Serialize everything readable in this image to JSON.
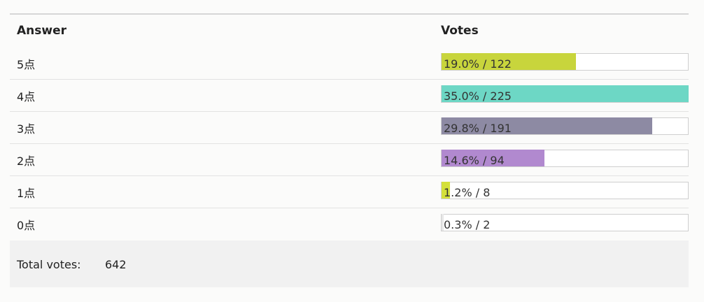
{
  "table": {
    "headers": [
      "Answer",
      "Votes"
    ],
    "rows": [
      {
        "answer": "5点",
        "percent": 19.0,
        "label": "19.0% / 122",
        "color": "#c8d53c"
      },
      {
        "answer": "4点",
        "percent": 35.0,
        "label": "35.0% / 225",
        "color": "#6dd7c5"
      },
      {
        "answer": "3点",
        "percent": 29.8,
        "label": "29.8% / 191",
        "color": "#8d8aa3"
      },
      {
        "answer": "2点",
        "percent": 14.6,
        "label": "14.6% / 94",
        "color": "#b189cf"
      },
      {
        "answer": "1点",
        "percent": 1.2,
        "label": "1.2% / 8",
        "color": "#d4e03a"
      },
      {
        "answer": "0点",
        "percent": 0.3,
        "label": "0.3% / 2",
        "color": "#e8e8e8"
      }
    ]
  },
  "footer": {
    "label": "Total votes:",
    "total": 642
  }
}
